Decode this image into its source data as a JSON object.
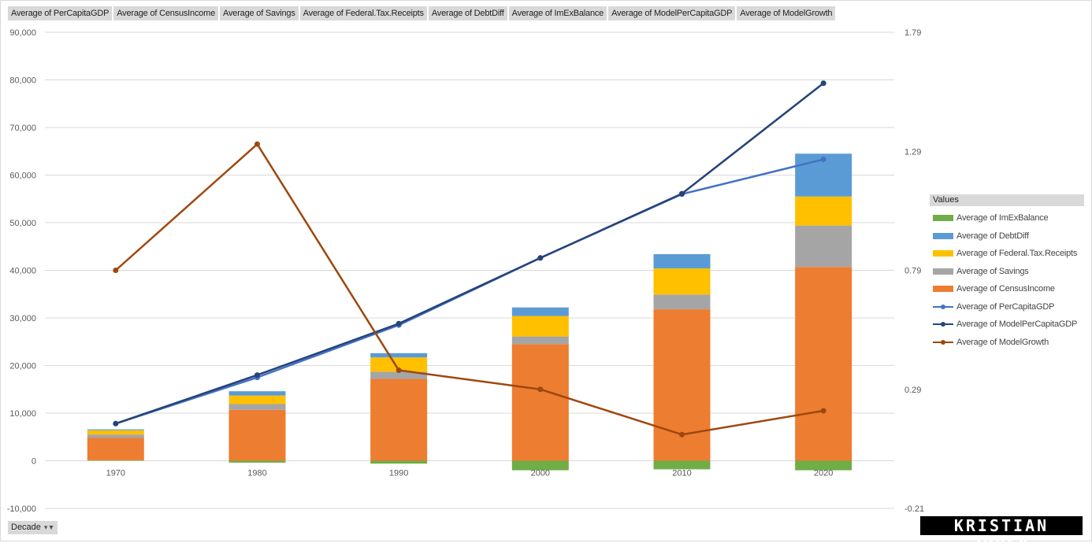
{
  "field_buttons": [
    "Average of PerCapitaGDP",
    "Average of CensusIncome",
    "Average of Savings",
    "Average of Federal.Tax.Receipts",
    "Average of DebtDiff",
    "Average of ImExBalance",
    "Average of ModelPerCapitaGDP",
    "Average of ModelGrowth"
  ],
  "legend": {
    "title": "Values",
    "items": [
      {
        "label": "Average of ImExBalance",
        "kind": "bar",
        "color": "#70ad47"
      },
      {
        "label": "Average of DebtDiff",
        "kind": "bar",
        "color": "#5b9bd5"
      },
      {
        "label": "Average of Federal.Tax.Receipts",
        "kind": "bar",
        "color": "#ffc000"
      },
      {
        "label": "Average of Savings",
        "kind": "bar",
        "color": "#a5a5a5"
      },
      {
        "label": "Average of CensusIncome",
        "kind": "bar",
        "color": "#ed7d31"
      },
      {
        "label": "Average of PerCapitaGDP",
        "kind": "line",
        "color": "#4472c4"
      },
      {
        "label": "Average of ModelPerCapitaGDP",
        "kind": "line",
        "color": "#264478"
      },
      {
        "label": "Average of ModelGrowth",
        "kind": "line",
        "color": "#9e480e"
      }
    ]
  },
  "axis_filter": {
    "label": "Decade",
    "icon": "filter-dropdown-icon"
  },
  "logo_text": "KRISTIAN ZUBEK",
  "chart_data": {
    "type": "bar+line combo (stacked columns, secondary axis line)",
    "categories": [
      "1970",
      "1980",
      "1990",
      "2000",
      "2010",
      "2020"
    ],
    "y_left": {
      "min": -10000,
      "max": 90000,
      "step": 10000,
      "tick_labels": [
        "-10,000",
        "0",
        "10,000",
        "20,000",
        "30,000",
        "40,000",
        "50,000",
        "60,000",
        "70,000",
        "80,000",
        "90,000"
      ]
    },
    "y_right": {
      "min": -0.21,
      "max": 1.79,
      "step": 0.5,
      "tick_labels": [
        "-0.21",
        "0.29",
        "0.79",
        "1.29",
        "1.79"
      ]
    },
    "gridlines": true,
    "stacked_bars": [
      {
        "name": "Average of ImExBalance",
        "color": "#70ad47",
        "values": [
          100,
          -400,
          -600,
          -2000,
          -1800,
          -2000
        ]
      },
      {
        "name": "Average of CensusIncome",
        "color": "#ed7d31",
        "values": [
          4700,
          10700,
          17200,
          24500,
          31800,
          40700
        ]
      },
      {
        "name": "Average of Savings",
        "color": "#a5a5a5",
        "values": [
          700,
          1200,
          1500,
          1600,
          3100,
          8700
        ]
      },
      {
        "name": "Average of Federal.Tax.Receipts",
        "color": "#ffc000",
        "values": [
          900,
          1800,
          3000,
          4300,
          5500,
          6100
        ]
      },
      {
        "name": "Average of DebtDiff",
        "color": "#5b9bd5",
        "values": [
          200,
          900,
          900,
          1800,
          3000,
          9000
        ]
      }
    ],
    "lines": [
      {
        "name": "Average of PerCapitaGDP",
        "axis": "left",
        "color": "#4472c4",
        "values": [
          7800,
          17500,
          28500,
          42600,
          56000,
          63300
        ]
      },
      {
        "name": "Average of ModelPerCapitaGDP",
        "axis": "left",
        "color": "#264478",
        "values": [
          7800,
          18000,
          28800,
          42600,
          56100,
          79300
        ]
      },
      {
        "name": "Average of ModelGrowth",
        "axis": "right",
        "color": "#9e480e",
        "values": [
          0.79,
          1.32,
          0.37,
          0.29,
          0.1,
          0.2
        ]
      }
    ]
  }
}
